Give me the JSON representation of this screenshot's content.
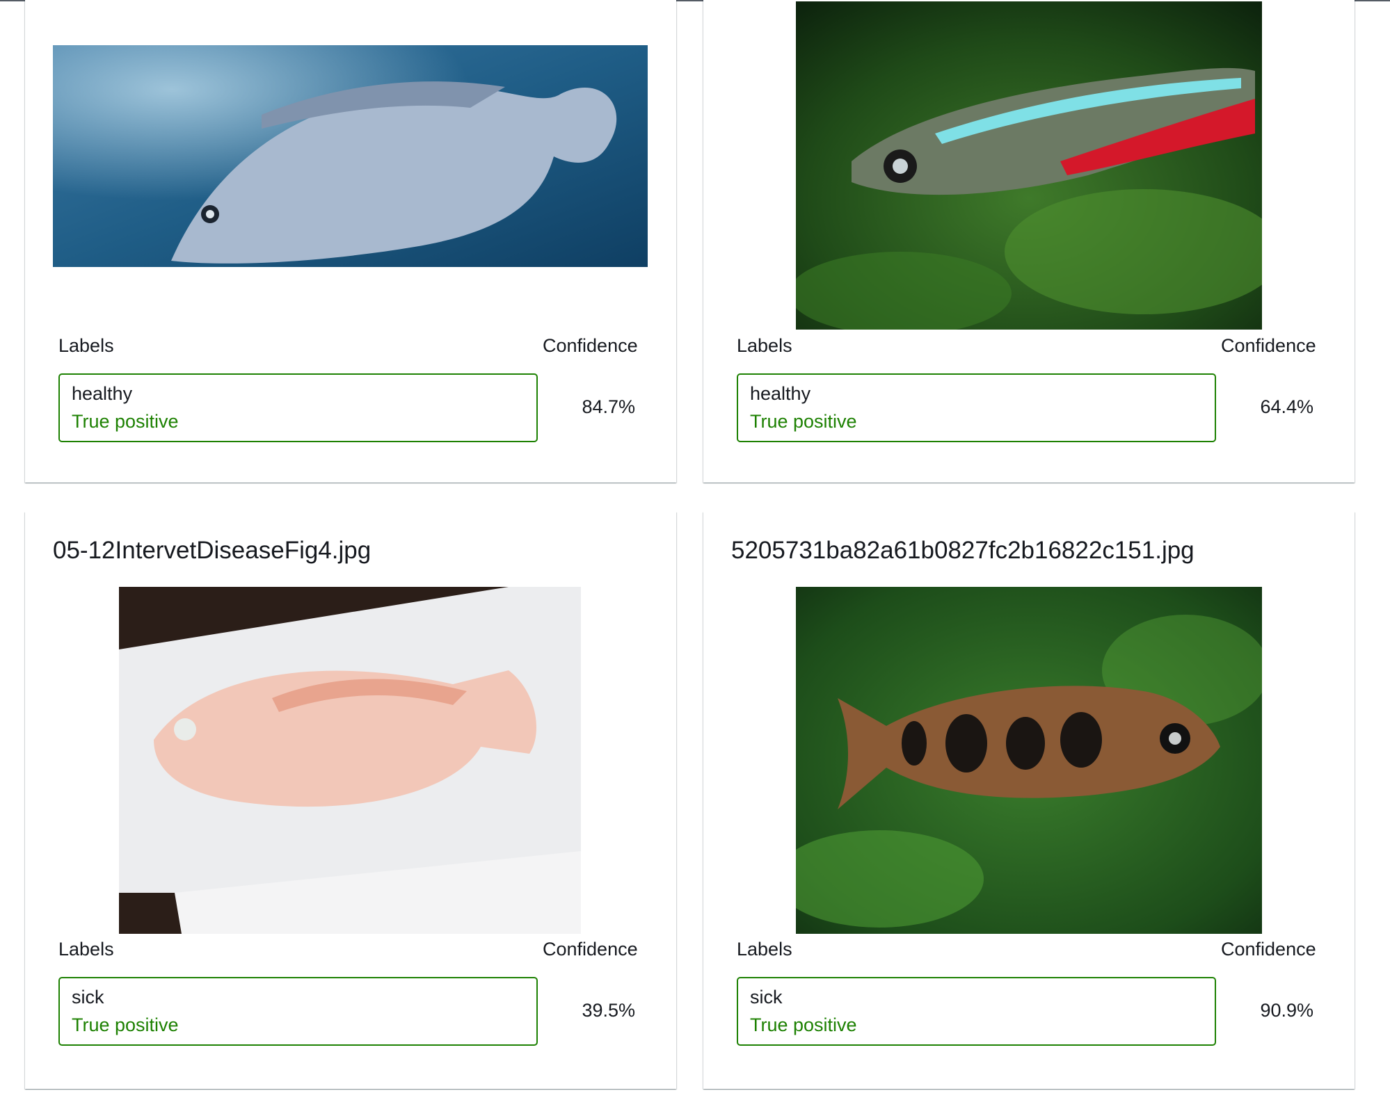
{
  "colors": {
    "positive": "#1d8102",
    "text": "#16191f",
    "card_border": "#d5dbdb"
  },
  "columns": {
    "labels_header": "Labels",
    "confidence_header": "Confidence"
  },
  "cards": [
    {
      "filename": "",
      "image": "tilapia-fish-photo",
      "label": "healthy",
      "status": "True positive",
      "confidence": "84.7%"
    },
    {
      "filename": "",
      "image": "neon-tetra-photo",
      "label": "healthy",
      "status": "True positive",
      "confidence": "64.4%"
    },
    {
      "filename": "05-12IntervetDiseaseFig4.jpg",
      "image": "pale-fish-on-paper-photo",
      "label": "sick",
      "status": "True positive",
      "confidence": "39.5%"
    },
    {
      "filename": "5205731ba82a61b0827fc2b16822c151.jpg",
      "image": "spotted-fish-photo",
      "label": "sick",
      "status": "True positive",
      "confidence": "90.9%"
    }
  ]
}
